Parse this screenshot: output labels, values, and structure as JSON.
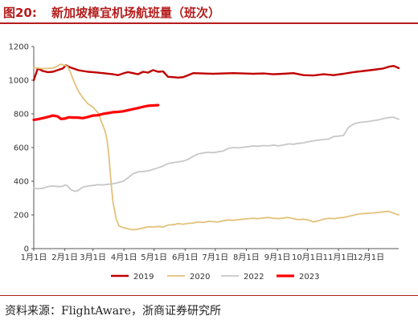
{
  "header": {
    "figure_number": "图20:",
    "title": "新加坡樟宜机场航班量（班次）"
  },
  "source": "资料来源：FlightAware，浙商证券研究所",
  "chart_data": {
    "type": "line",
    "title": "",
    "xlabel": "",
    "ylabel": "",
    "ylim": [
      0,
      1200
    ],
    "yticks": [
      0,
      200,
      400,
      600,
      800,
      1000,
      1200
    ],
    "xlim": [
      1,
      365
    ],
    "x_ticks": [
      {
        "label": "1月1日",
        "day": 1
      },
      {
        "label": "2月1日",
        "day": 32
      },
      {
        "label": "3月1日",
        "day": 60
      },
      {
        "label": "4月1日",
        "day": 91
      },
      {
        "label": "5月1日",
        "day": 121
      },
      {
        "label": "6月1日",
        "day": 152
      },
      {
        "label": "7月1日",
        "day": 182
      },
      {
        "label": "8月1日",
        "day": 213
      },
      {
        "label": "9月1日",
        "day": 244
      },
      {
        "label": "10月1日",
        "day": 274
      },
      {
        "label": "11月1日",
        "day": 305
      },
      {
        "label": "12月1日",
        "day": 335
      }
    ],
    "grid": false,
    "legend_position": "bottom",
    "series": [
      {
        "name": "2019",
        "color": "#c00000",
        "width": 2.4,
        "points": [
          [
            1,
            1000
          ],
          [
            5,
            1070
          ],
          [
            10,
            1055
          ],
          [
            15,
            1048
          ],
          [
            20,
            1050
          ],
          [
            25,
            1060
          ],
          [
            30,
            1070
          ],
          [
            33,
            1088
          ],
          [
            38,
            1075
          ],
          [
            45,
            1060
          ],
          [
            50,
            1055
          ],
          [
            55,
            1050
          ],
          [
            60,
            1048
          ],
          [
            70,
            1042
          ],
          [
            80,
            1035
          ],
          [
            85,
            1030
          ],
          [
            90,
            1040
          ],
          [
            95,
            1048
          ],
          [
            100,
            1042
          ],
          [
            105,
            1035
          ],
          [
            110,
            1050
          ],
          [
            115,
            1045
          ],
          [
            120,
            1060
          ],
          [
            125,
            1050
          ],
          [
            130,
            1052
          ],
          [
            135,
            1020
          ],
          [
            140,
            1018
          ],
          [
            145,
            1015
          ],
          [
            150,
            1018
          ],
          [
            155,
            1030
          ],
          [
            160,
            1042
          ],
          [
            170,
            1040
          ],
          [
            180,
            1038
          ],
          [
            190,
            1040
          ],
          [
            200,
            1042
          ],
          [
            210,
            1040
          ],
          [
            220,
            1038
          ],
          [
            230,
            1040
          ],
          [
            240,
            1035
          ],
          [
            250,
            1038
          ],
          [
            260,
            1042
          ],
          [
            270,
            1030
          ],
          [
            280,
            1028
          ],
          [
            290,
            1035
          ],
          [
            300,
            1030
          ],
          [
            310,
            1038
          ],
          [
            320,
            1048
          ],
          [
            330,
            1055
          ],
          [
            340,
            1062
          ],
          [
            350,
            1070
          ],
          [
            355,
            1080
          ],
          [
            360,
            1085
          ],
          [
            365,
            1072
          ]
        ]
      },
      {
        "name": "2020",
        "color": "#e2c27a",
        "width": 1.8,
        "points": [
          [
            1,
            1075
          ],
          [
            5,
            1072
          ],
          [
            10,
            1068
          ],
          [
            15,
            1070
          ],
          [
            20,
            1072
          ],
          [
            25,
            1085
          ],
          [
            28,
            1095
          ],
          [
            31,
            1090
          ],
          [
            35,
            1080
          ],
          [
            38,
            1040
          ],
          [
            42,
            980
          ],
          [
            46,
            930
          ],
          [
            50,
            895
          ],
          [
            55,
            860
          ],
          [
            60,
            840
          ],
          [
            63,
            820
          ],
          [
            66,
            800
          ],
          [
            68,
            760
          ],
          [
            72,
            700
          ],
          [
            74,
            650
          ],
          [
            76,
            550
          ],
          [
            78,
            400
          ],
          [
            80,
            280
          ],
          [
            83,
            180
          ],
          [
            86,
            135
          ],
          [
            90,
            125
          ],
          [
            95,
            118
          ],
          [
            100,
            112
          ],
          [
            105,
            115
          ],
          [
            110,
            122
          ],
          [
            115,
            130
          ],
          [
            120,
            128
          ],
          [
            125,
            132
          ],
          [
            130,
            128
          ],
          [
            135,
            140
          ],
          [
            140,
            142
          ],
          [
            145,
            148
          ],
          [
            150,
            145
          ],
          [
            155,
            150
          ],
          [
            160,
            152
          ],
          [
            165,
            158
          ],
          [
            170,
            155
          ],
          [
            175,
            162
          ],
          [
            180,
            160
          ],
          [
            185,
            158
          ],
          [
            190,
            165
          ],
          [
            195,
            170
          ],
          [
            200,
            168
          ],
          [
            205,
            172
          ],
          [
            210,
            175
          ],
          [
            215,
            178
          ],
          [
            220,
            180
          ],
          [
            225,
            178
          ],
          [
            230,
            182
          ],
          [
            235,
            185
          ],
          [
            240,
            180
          ],
          [
            245,
            178
          ],
          [
            250,
            182
          ],
          [
            255,
            185
          ],
          [
            260,
            178
          ],
          [
            265,
            172
          ],
          [
            270,
            175
          ],
          [
            275,
            170
          ],
          [
            280,
            158
          ],
          [
            285,
            165
          ],
          [
            290,
            175
          ],
          [
            295,
            180
          ],
          [
            300,
            178
          ],
          [
            305,
            182
          ],
          [
            310,
            185
          ],
          [
            315,
            192
          ],
          [
            320,
            198
          ],
          [
            325,
            205
          ],
          [
            330,
            208
          ],
          [
            335,
            210
          ],
          [
            340,
            212
          ],
          [
            345,
            215
          ],
          [
            350,
            218
          ],
          [
            355,
            222
          ],
          [
            360,
            210
          ],
          [
            365,
            200
          ]
        ]
      },
      {
        "name": "2022",
        "color": "#c7c7c7",
        "width": 1.8,
        "points": [
          [
            1,
            360
          ],
          [
            5,
            355
          ],
          [
            10,
            358
          ],
          [
            15,
            368
          ],
          [
            20,
            372
          ],
          [
            25,
            368
          ],
          [
            30,
            370
          ],
          [
            32,
            378
          ],
          [
            35,
            372
          ],
          [
            38,
            350
          ],
          [
            42,
            340
          ],
          [
            45,
            345
          ],
          [
            50,
            365
          ],
          [
            55,
            372
          ],
          [
            60,
            375
          ],
          [
            65,
            380
          ],
          [
            70,
            378
          ],
          [
            75,
            382
          ],
          [
            80,
            385
          ],
          [
            85,
            392
          ],
          [
            90,
            400
          ],
          [
            95,
            420
          ],
          [
            100,
            445
          ],
          [
            105,
            455
          ],
          [
            110,
            458
          ],
          [
            115,
            462
          ],
          [
            120,
            470
          ],
          [
            125,
            480
          ],
          [
            130,
            490
          ],
          [
            135,
            505
          ],
          [
            140,
            510
          ],
          [
            145,
            515
          ],
          [
            150,
            520
          ],
          [
            155,
            530
          ],
          [
            160,
            548
          ],
          [
            165,
            562
          ],
          [
            170,
            568
          ],
          [
            175,
            572
          ],
          [
            180,
            570
          ],
          [
            185,
            575
          ],
          [
            190,
            580
          ],
          [
            195,
            595
          ],
          [
            200,
            600
          ],
          [
            205,
            598
          ],
          [
            210,
            602
          ],
          [
            215,
            605
          ],
          [
            220,
            610
          ],
          [
            225,
            608
          ],
          [
            230,
            612
          ],
          [
            235,
            610
          ],
          [
            240,
            615
          ],
          [
            245,
            610
          ],
          [
            250,
            615
          ],
          [
            255,
            622
          ],
          [
            260,
            620
          ],
          [
            265,
            625
          ],
          [
            270,
            628
          ],
          [
            275,
            635
          ],
          [
            280,
            640
          ],
          [
            285,
            645
          ],
          [
            290,
            648
          ],
          [
            295,
            650
          ],
          [
            300,
            665
          ],
          [
            305,
            668
          ],
          [
            310,
            672
          ],
          [
            315,
            720
          ],
          [
            320,
            740
          ],
          [
            325,
            748
          ],
          [
            330,
            752
          ],
          [
            335,
            755
          ],
          [
            340,
            760
          ],
          [
            345,
            765
          ],
          [
            350,
            772
          ],
          [
            355,
            778
          ],
          [
            360,
            780
          ],
          [
            365,
            768
          ]
        ]
      },
      {
        "name": "2023",
        "color": "#ff0000",
        "width": 3.2,
        "points": [
          [
            1,
            765
          ],
          [
            5,
            768
          ],
          [
            10,
            775
          ],
          [
            15,
            782
          ],
          [
            20,
            790
          ],
          [
            25,
            785
          ],
          [
            28,
            770
          ],
          [
            32,
            772
          ],
          [
            36,
            780
          ],
          [
            40,
            778
          ],
          [
            45,
            778
          ],
          [
            50,
            775
          ],
          [
            55,
            782
          ],
          [
            60,
            790
          ],
          [
            65,
            792
          ],
          [
            70,
            800
          ],
          [
            75,
            805
          ],
          [
            80,
            810
          ],
          [
            85,
            812
          ],
          [
            90,
            815
          ],
          [
            95,
            822
          ],
          [
            100,
            828
          ],
          [
            105,
            835
          ],
          [
            110,
            842
          ],
          [
            115,
            848
          ],
          [
            120,
            850
          ],
          [
            125,
            852
          ]
        ]
      }
    ]
  }
}
